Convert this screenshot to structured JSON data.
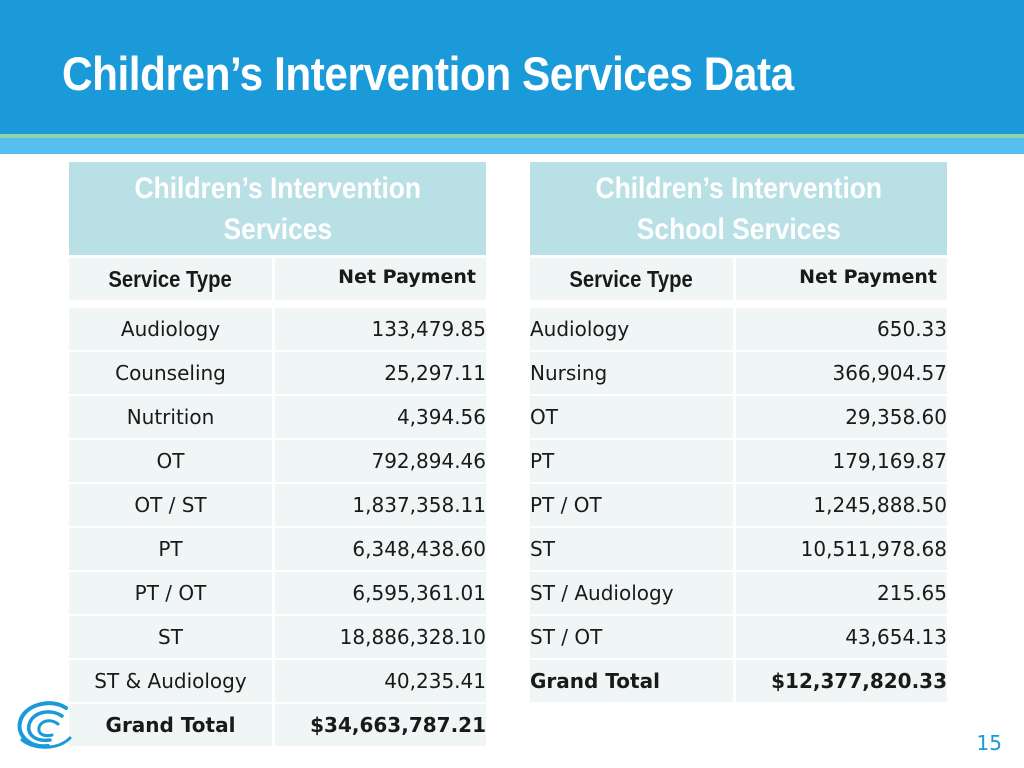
{
  "slide": {
    "title": "Children’s Intervention Services Data",
    "page_number": "15",
    "colors": {
      "header": "#1a9ad8",
      "caption_bg": "#b9e0e5",
      "row_bg": "#f0f5f6",
      "accent": "#1a9ad8"
    }
  },
  "left_table": {
    "caption_line1": "Children’s Intervention",
    "caption_line2": "Services",
    "col_type": "Service Type",
    "col_payment": "Net Payment",
    "rows": [
      {
        "type": "Audiology",
        "payment": "133,479.85"
      },
      {
        "type": "Counseling",
        "payment": "25,297.11"
      },
      {
        "type": "Nutrition",
        "payment": "4,394.56"
      },
      {
        "type": "OT",
        "payment": "792,894.46"
      },
      {
        "type": "OT / ST",
        "payment": "1,837,358.11"
      },
      {
        "type": "PT",
        "payment": "6,348,438.60"
      },
      {
        "type": "PT / OT",
        "payment": "6,595,361.01"
      },
      {
        "type": "ST",
        "payment": "18,886,328.10"
      },
      {
        "type": "ST & Audiology",
        "payment": "40,235.41"
      }
    ],
    "total": {
      "type": "Grand Total",
      "payment": "$34,663,787.21"
    }
  },
  "right_table": {
    "caption_line1": "Children’s Intervention",
    "caption_line2": "School Services",
    "col_type": "Service Type",
    "col_payment": "Net Payment",
    "rows": [
      {
        "type": "Audiology",
        "payment": "650.33"
      },
      {
        "type": "Nursing",
        "payment": "366,904.57"
      },
      {
        "type": "OT",
        "payment": "29,358.60"
      },
      {
        "type": "PT",
        "payment": "179,169.87"
      },
      {
        "type": "PT / OT",
        "payment": "1,245,888.50"
      },
      {
        "type": "ST",
        "payment": "10,511,978.68"
      },
      {
        "type": "ST / Audiology",
        "payment": "215.65"
      },
      {
        "type": "ST / OT",
        "payment": "43,654.13"
      }
    ],
    "total": {
      "type": "Grand Total",
      "payment": "$12,377,820.33"
    }
  }
}
